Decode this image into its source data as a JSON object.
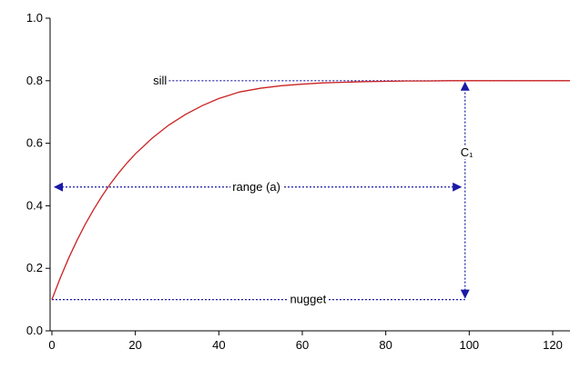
{
  "chart_data": {
    "type": "line",
    "title": "",
    "xlabel": "",
    "ylabel": "",
    "xlim": [
      0,
      126
    ],
    "ylim": [
      0.0,
      1.0
    ],
    "x_ticks": [
      0,
      20,
      40,
      60,
      80,
      100,
      120
    ],
    "x_tick_labels": [
      "0",
      "20",
      "40",
      "60",
      "80",
      "100",
      "120"
    ],
    "y_ticks": [
      0.0,
      0.2,
      0.4,
      0.6,
      0.8,
      1.0
    ],
    "y_tick_labels": [
      "0.0",
      "0.2",
      "0.4",
      "0.6",
      "0.8",
      "1.0"
    ],
    "grid": false,
    "colors": {
      "curve": "#cc2222",
      "annotation": "#1a1aa6",
      "axis": "#000000"
    },
    "series": [
      {
        "x": [
          0,
          2,
          4,
          6,
          8,
          10,
          12,
          14,
          16,
          18,
          20,
          24,
          28,
          32,
          36,
          40,
          45,
          50,
          55,
          60,
          65,
          70,
          75,
          80,
          85,
          90,
          95,
          100,
          105,
          110,
          115,
          120,
          126
        ],
        "values": [
          0.1,
          0.169,
          0.232,
          0.289,
          0.341,
          0.388,
          0.431,
          0.47,
          0.505,
          0.537,
          0.566,
          0.616,
          0.658,
          0.692,
          0.72,
          0.743,
          0.764,
          0.776,
          0.784,
          0.789,
          0.793,
          0.795,
          0.797,
          0.798,
          0.799,
          0.799,
          0.8,
          0.8,
          0.8,
          0.8,
          0.8,
          0.8,
          0.8
        ]
      }
    ],
    "annotations": {
      "sill": {
        "label": "sill",
        "y": 0.8,
        "x_start": 28,
        "x_end": 126
      },
      "nugget": {
        "label": "nugget",
        "y": 0.1,
        "x_start": 0,
        "x_end": 99
      },
      "range": {
        "label": "range (a)",
        "y": 0.46,
        "x_start": 0,
        "x_end": 98
      },
      "c1": {
        "label": "C₁",
        "x": 99,
        "y_start": 0.1,
        "y_end": 0.8,
        "label_y": 0.57
      }
    }
  }
}
